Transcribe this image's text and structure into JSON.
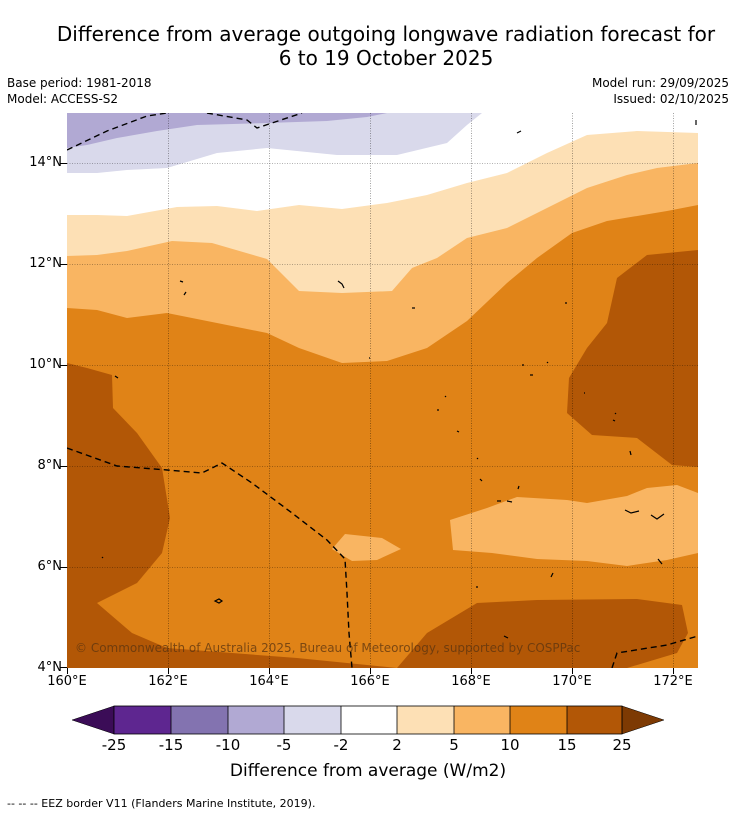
{
  "title": {
    "line1": "Difference from average outgoing longwave radiation forecast for",
    "line2": "6 to 19 October 2025"
  },
  "meta": {
    "base_period": "Base period: 1981-2018",
    "model": "Model: ACCESS-S2",
    "model_run": "Model run: 29/09/2025",
    "issued": "Issued: 02/10/2025"
  },
  "axes": {
    "lat_labels": [
      "14°N",
      "12°N",
      "10°N",
      "8°N",
      "6°N",
      "4°N"
    ],
    "lon_labels": [
      "160°E",
      "162°E",
      "164°E",
      "166°E",
      "168°E",
      "170°E",
      "172°E"
    ]
  },
  "copyright": "© Commonwealth of Australia 2025, Bureau of Meteorology, supported by COSPPac",
  "colorbar": {
    "labels": [
      "-25",
      "-15",
      "-10",
      "-5",
      "-2",
      "2",
      "5",
      "10",
      "15",
      "25"
    ],
    "title": "Difference from average (W/m2)",
    "colors": {
      "lt_neg25": "#3b0c57",
      "neg25_15": "#5e2690",
      "neg15_10": "#8373b0",
      "neg10_5": "#b1a9d3",
      "neg5_2": "#d9d9eb",
      "neg2_2": "#ffffff",
      "pos2_5": "#fde0b5",
      "pos5_10": "#f9b562",
      "pos10_15": "#e08317",
      "pos15_25": "#b25706",
      "gt_25": "#7d3a03"
    }
  },
  "footer": "--  --  -- EEZ border V11 (Flanders Marine Institute, 2019)."
}
